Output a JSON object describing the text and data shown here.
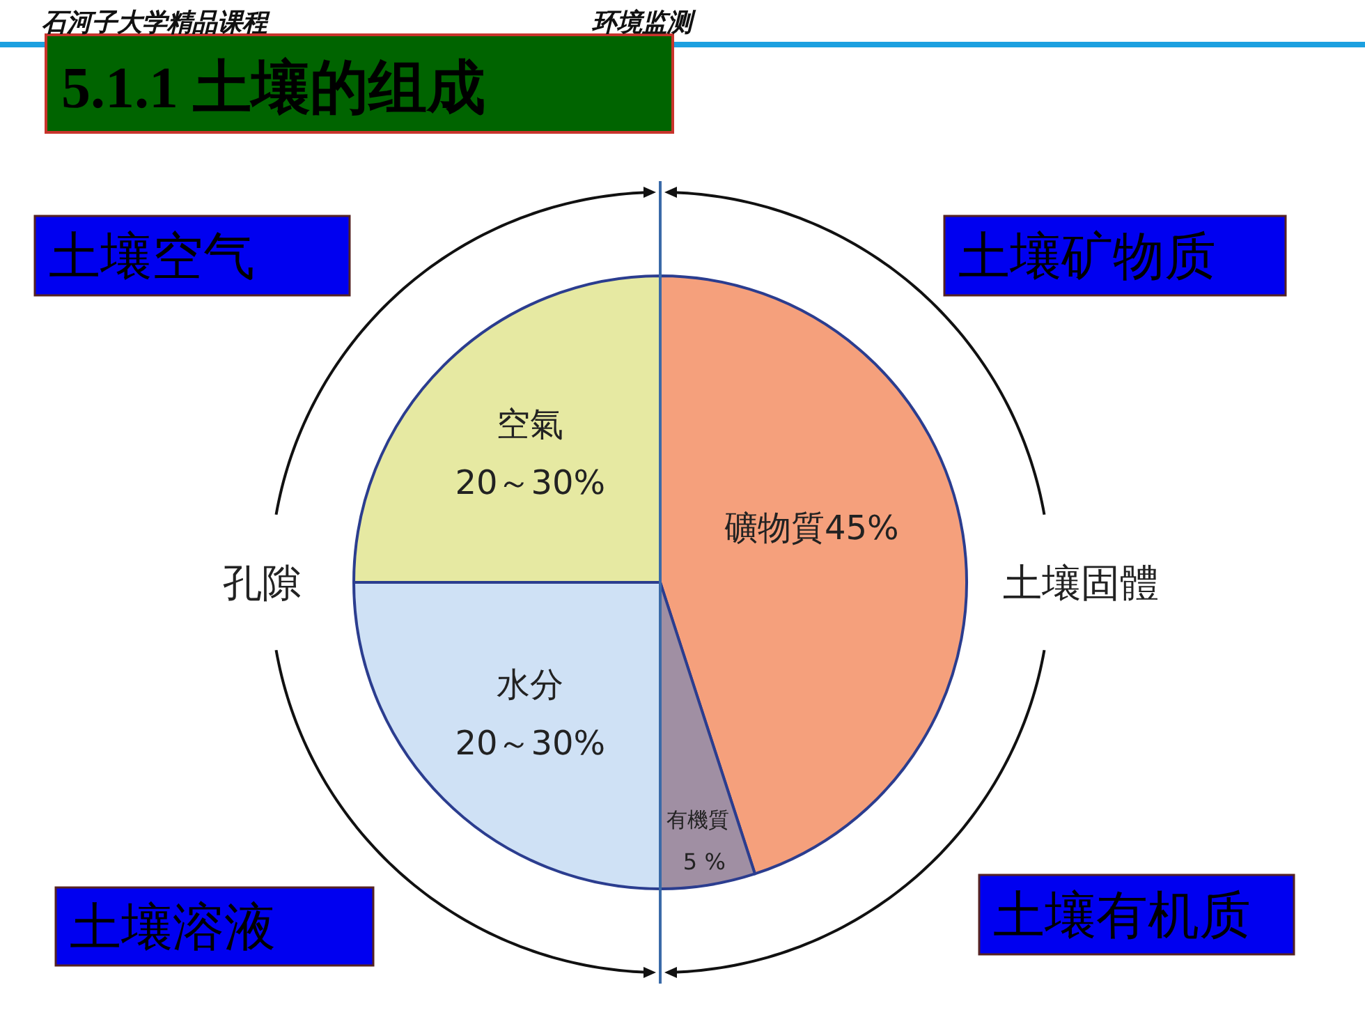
{
  "chart_data": {
    "type": "pie",
    "title": "5.1.1 土壤的组成",
    "categories": [
      "礦物質",
      "有機質",
      "水分",
      "空氣"
    ],
    "values": [
      45,
      5,
      25,
      25
    ],
    "value_labels": [
      "45%",
      "5 %",
      null,
      null
    ],
    "colors": [
      "#f5a07c",
      "#a08fa3",
      "#cfe1f5",
      "#e6e9a2"
    ],
    "annotations": [
      "石河子大学精品课程",
      "环境监测",
      "土壤空气",
      "土壤矿物质",
      "土壤溶液",
      "土壤有机质",
      "孔隙",
      "土壤固體",
      "20～30%",
      "20～30%"
    ]
  }
}
